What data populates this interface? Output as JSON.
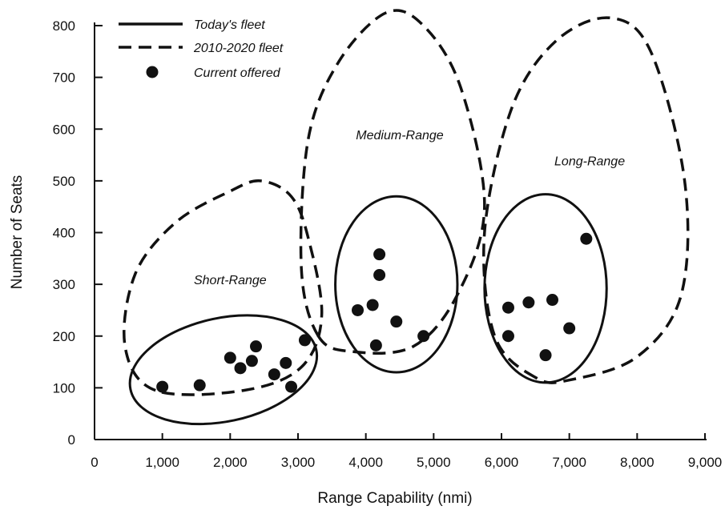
{
  "chart_data": {
    "type": "scatter",
    "title": "",
    "xlabel": "Range Capability (nmi)",
    "ylabel": "Number of Seats",
    "xlim": [
      0,
      9000
    ],
    "ylim": [
      0,
      800
    ],
    "xticks": [
      0,
      1000,
      2000,
      3000,
      4000,
      5000,
      6000,
      7000,
      8000,
      9000
    ],
    "xtick_labels": [
      "0",
      "1,000",
      "2,000",
      "3,000",
      "4,000",
      "5,000",
      "6,000",
      "7,000",
      "8,000",
      "9,000"
    ],
    "yticks": [
      0,
      100,
      200,
      300,
      400,
      500,
      600,
      700,
      800
    ],
    "ytick_labels": [
      "0",
      "100",
      "200",
      "300",
      "400",
      "500",
      "600",
      "700",
      "800"
    ],
    "grid": false,
    "legend_position": "top-left",
    "legend": [
      {
        "label": "Today's fleet",
        "marker": "solid-line"
      },
      {
        "label": "2010-2020 fleet",
        "marker": "dashed-line"
      },
      {
        "label": "Current offered",
        "marker": "dot"
      }
    ],
    "series": [
      {
        "name": "Current offered",
        "points": [
          {
            "x": 1000,
            "y": 102
          },
          {
            "x": 1550,
            "y": 105
          },
          {
            "x": 2000,
            "y": 158
          },
          {
            "x": 2150,
            "y": 138
          },
          {
            "x": 2320,
            "y": 152
          },
          {
            "x": 2380,
            "y": 180
          },
          {
            "x": 2650,
            "y": 126
          },
          {
            "x": 2820,
            "y": 148
          },
          {
            "x": 2900,
            "y": 102
          },
          {
            "x": 3100,
            "y": 192
          },
          {
            "x": 3880,
            "y": 250
          },
          {
            "x": 4100,
            "y": 260
          },
          {
            "x": 4150,
            "y": 182
          },
          {
            "x": 4200,
            "y": 358
          },
          {
            "x": 4200,
            "y": 318
          },
          {
            "x": 4450,
            "y": 228
          },
          {
            "x": 4850,
            "y": 200
          },
          {
            "x": 6100,
            "y": 255
          },
          {
            "x": 6100,
            "y": 200
          },
          {
            "x": 6400,
            "y": 265
          },
          {
            "x": 6650,
            "y": 163
          },
          {
            "x": 6750,
            "y": 270
          },
          {
            "x": 7000,
            "y": 215
          },
          {
            "x": 7250,
            "y": 388
          }
        ]
      }
    ],
    "today_fleet_regions": [
      {
        "cx": 1900,
        "cy": 135,
        "rx": 1400,
        "ry": 100,
        "rotate_deg": -12
      },
      {
        "cx": 4450,
        "cy": 300,
        "rx": 900,
        "ry": 170,
        "rotate_deg": 0
      },
      {
        "cx": 6650,
        "cy": 292,
        "rx": 900,
        "ry": 182,
        "rotate_deg": 0
      }
    ],
    "future_fleet_regions": [
      {
        "points": [
          [
            900,
            95
          ],
          [
            450,
            180
          ],
          [
            600,
            320
          ],
          [
            1200,
            420
          ],
          [
            2000,
            480
          ],
          [
            2450,
            500
          ],
          [
            2900,
            470
          ],
          [
            3150,
            390
          ],
          [
            3350,
            240
          ],
          [
            3050,
            140
          ],
          [
            2200,
            95
          ]
        ]
      },
      {
        "points": [
          [
            3300,
            200
          ],
          [
            3050,
            330
          ],
          [
            3150,
            580
          ],
          [
            3600,
            730
          ],
          [
            4300,
            825
          ],
          [
            4850,
            800
          ],
          [
            5400,
            680
          ],
          [
            5750,
            450
          ],
          [
            5350,
            280
          ],
          [
            4700,
            180
          ],
          [
            3800,
            170
          ]
        ]
      },
      {
        "points": [
          [
            6500,
            120
          ],
          [
            5900,
            200
          ],
          [
            5750,
            400
          ],
          [
            6150,
            640
          ],
          [
            6800,
            770
          ],
          [
            7600,
            815
          ],
          [
            8200,
            750
          ],
          [
            8700,
            500
          ],
          [
            8650,
            280
          ],
          [
            8000,
            160
          ],
          [
            7000,
            115
          ]
        ]
      }
    ],
    "annotations": [
      {
        "text": "Short-Range",
        "x": 2000,
        "y": 300
      },
      {
        "text": "Medium-Range",
        "x": 4500,
        "y": 580
      },
      {
        "text": "Long-Range",
        "x": 7300,
        "y": 530
      }
    ]
  }
}
